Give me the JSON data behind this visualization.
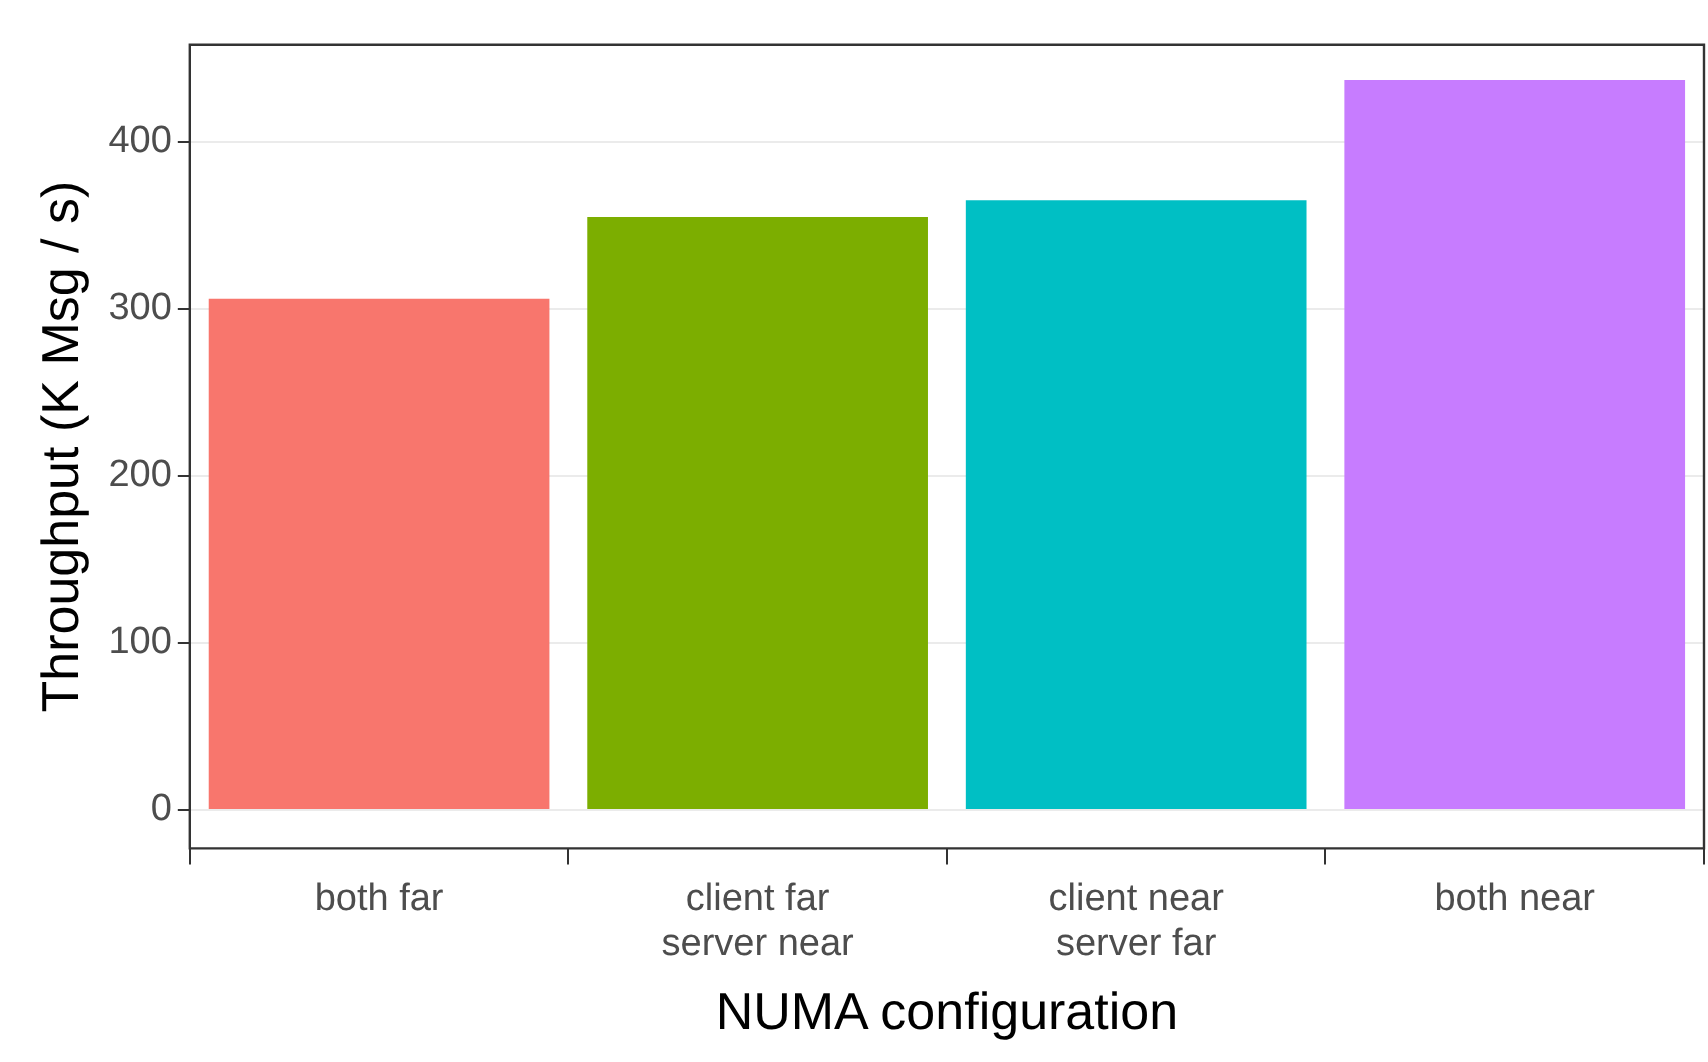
{
  "chart_data": {
    "type": "bar",
    "xlabel": "NUMA configuration",
    "ylabel": "Throughput (K Msg / s)",
    "categories": [
      "both far",
      "client far\nserver near",
      "client near\nserver far",
      "both near"
    ],
    "values": [
      306,
      355,
      365,
      437
    ],
    "colors": [
      "#f8766d",
      "#7cae00",
      "#00bfc4",
      "#c77cff"
    ],
    "ylim": [
      -23,
      458
    ],
    "yticks": [
      0,
      100,
      200,
      300,
      400
    ],
    "grid": true,
    "legend": false
  }
}
